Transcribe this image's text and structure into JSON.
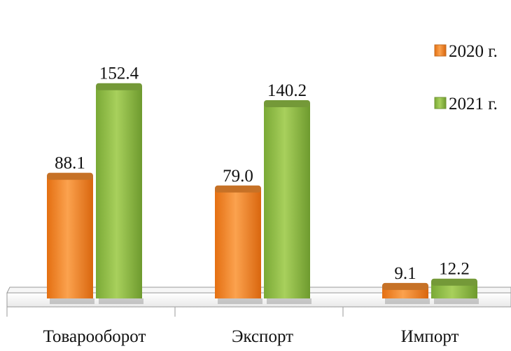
{
  "chart_data": {
    "type": "bar",
    "categories": [
      "Товарооборот",
      "Экспорт",
      "Импорт"
    ],
    "series": [
      {
        "name": "2020 г.",
        "values": [
          88.1,
          79.0,
          9.1
        ],
        "value_labels": [
          "88.1",
          "79.0",
          "9.1"
        ],
        "color": "#F28A2E"
      },
      {
        "name": "2021 г.",
        "values": [
          152.4,
          140.2,
          12.2
        ],
        "value_labels": [
          "152.4",
          "140.2",
          "12.2"
        ],
        "color": "#8DBA44"
      }
    ],
    "ylim": [
      0,
      160
    ],
    "grid": false,
    "legend_position": "top-right",
    "title": "",
    "xlabel": "",
    "ylabel": ""
  }
}
